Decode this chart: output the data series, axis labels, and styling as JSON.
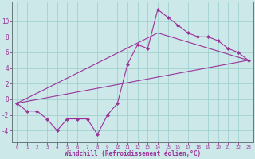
{
  "xlabel": "Windchill (Refroidissement éolien,°C)",
  "bg_color": "#cce8e8",
  "line_color": "#993399",
  "grid_color": "#99cccc",
  "x_ticks": [
    0,
    1,
    2,
    3,
    4,
    5,
    6,
    7,
    8,
    9,
    10,
    11,
    12,
    13,
    14,
    15,
    16,
    17,
    18,
    19,
    20,
    21,
    22,
    23
  ],
  "y_ticks": [
    -4,
    -2,
    0,
    2,
    4,
    6,
    8,
    10
  ],
  "xlim": [
    -0.5,
    23.5
  ],
  "ylim": [
    -5.5,
    12.5
  ],
  "line1_x": [
    0,
    1,
    2,
    3,
    4,
    5,
    6,
    7,
    8,
    9,
    10,
    11,
    12,
    13,
    14,
    15,
    16,
    17,
    18,
    19,
    20,
    21,
    22,
    23
  ],
  "line1_y": [
    -0.5,
    -1.5,
    -1.5,
    -2.5,
    -4.0,
    -2.5,
    -2.5,
    -2.5,
    -4.5,
    -2.0,
    -0.5,
    4.5,
    7.0,
    6.5,
    11.5,
    10.5,
    9.5,
    8.5,
    8.0,
    8.0,
    7.5,
    6.5,
    6.0,
    5.0
  ],
  "line2_x": [
    0,
    23
  ],
  "line2_y": [
    -0.5,
    5.0
  ],
  "line3_x": [
    0,
    14,
    23
  ],
  "line3_y": [
    -0.5,
    8.5,
    5.0
  ]
}
